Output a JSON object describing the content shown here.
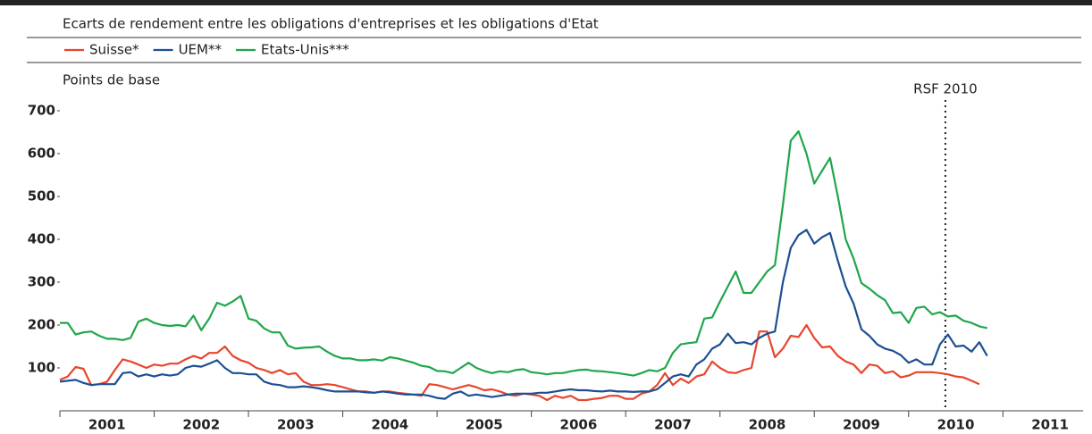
{
  "chart_data": {
    "type": "line",
    "title": "Ecarts de rendement entre les obligations d'entreprises et les obligations d'Etat",
    "y_label": "Points de base",
    "x": [
      2001,
      2001.083,
      2001.167,
      2001.25,
      2001.333,
      2001.417,
      2001.5,
      2001.583,
      2001.667,
      2001.75,
      2001.833,
      2001.917,
      2002,
      2002.083,
      2002.167,
      2002.25,
      2002.333,
      2002.417,
      2002.5,
      2002.583,
      2002.667,
      2002.75,
      2002.833,
      2002.917,
      2003,
      2003.083,
      2003.167,
      2003.25,
      2003.333,
      2003.417,
      2003.5,
      2003.583,
      2003.667,
      2003.75,
      2003.833,
      2003.917,
      2004,
      2004.083,
      2004.167,
      2004.25,
      2004.333,
      2004.417,
      2004.5,
      2004.583,
      2004.667,
      2004.75,
      2004.833,
      2004.917,
      2005,
      2005.083,
      2005.167,
      2005.25,
      2005.333,
      2005.417,
      2005.5,
      2005.583,
      2005.667,
      2005.75,
      2005.833,
      2005.917,
      2006,
      2006.083,
      2006.167,
      2006.25,
      2006.333,
      2006.417,
      2006.5,
      2006.583,
      2006.667,
      2006.75,
      2006.833,
      2006.917,
      2007,
      2007.083,
      2007.167,
      2007.25,
      2007.333,
      2007.417,
      2007.5,
      2007.583,
      2007.667,
      2007.75,
      2007.833,
      2007.917,
      2008,
      2008.083,
      2008.167,
      2008.25,
      2008.333,
      2008.417,
      2008.5,
      2008.583,
      2008.667,
      2008.75,
      2008.833,
      2008.917,
      2009,
      2009.083,
      2009.167,
      2009.25,
      2009.333,
      2009.417,
      2009.5,
      2009.583,
      2009.667,
      2009.75,
      2009.833,
      2009.917,
      2010,
      2010.083,
      2010.167,
      2010.25,
      2010.333,
      2010.417,
      2010.5,
      2010.583,
      2010.667,
      2010.75,
      2010.833
    ],
    "series": [
      {
        "name": "Suisse*",
        "color": "#e8452c",
        "values": [
          72,
          80,
          102,
          98,
          60,
          62,
          68,
          95,
          120,
          115,
          108,
          100,
          108,
          105,
          110,
          110,
          120,
          128,
          122,
          135,
          135,
          150,
          128,
          118,
          112,
          100,
          95,
          88,
          95,
          85,
          88,
          68,
          60,
          60,
          62,
          60,
          55,
          50,
          45,
          45,
          42,
          45,
          45,
          42,
          40,
          38,
          35,
          62,
          60,
          55,
          50,
          55,
          60,
          55,
          48,
          50,
          45,
          38,
          35,
          40,
          38,
          35,
          25,
          35,
          30,
          35,
          25,
          25,
          28,
          30,
          35,
          35,
          28,
          28,
          40,
          45,
          60,
          88,
          60,
          75,
          65,
          80,
          85,
          115,
          100,
          90,
          88,
          95,
          100,
          185,
          185,
          125,
          145,
          175,
          172,
          200,
          170,
          148,
          150,
          128,
          115,
          108,
          88,
          108,
          105,
          88,
          92,
          78,
          82,
          90,
          90,
          90,
          88,
          85,
          80,
          78,
          70,
          62,
          null
        ]
      },
      {
        "name": "UEM**",
        "color": "#1d4f91",
        "values": [
          68,
          70,
          72,
          65,
          60,
          62,
          62,
          62,
          88,
          90,
          80,
          85,
          80,
          85,
          82,
          85,
          100,
          105,
          103,
          110,
          118,
          100,
          88,
          88,
          85,
          85,
          68,
          62,
          60,
          55,
          55,
          57,
          55,
          52,
          48,
          45,
          45,
          45,
          45,
          43,
          42,
          45,
          43,
          40,
          38,
          38,
          38,
          35,
          30,
          28,
          40,
          45,
          35,
          38,
          35,
          32,
          35,
          38,
          40,
          40,
          40,
          42,
          42,
          45,
          48,
          50,
          48,
          48,
          46,
          45,
          47,
          45,
          45,
          44,
          45,
          45,
          50,
          65,
          80,
          85,
          80,
          108,
          120,
          145,
          155,
          180,
          158,
          160,
          155,
          170,
          180,
          185,
          300,
          380,
          410,
          422,
          390,
          405,
          415,
          350,
          290,
          250,
          190,
          175,
          155,
          145,
          140,
          130,
          112,
          120,
          108,
          108,
          155,
          178,
          150,
          152,
          138,
          160,
          128
        ]
      },
      {
        "name": "Etats-Unis***",
        "color": "#1fa64a",
        "values": [
          205,
          205,
          178,
          183,
          185,
          175,
          168,
          168,
          165,
          170,
          208,
          215,
          205,
          200,
          198,
          200,
          197,
          222,
          188,
          215,
          252,
          245,
          255,
          268,
          215,
          210,
          192,
          183,
          183,
          152,
          145,
          147,
          148,
          150,
          138,
          128,
          122,
          122,
          118,
          118,
          120,
          117,
          125,
          122,
          117,
          112,
          105,
          102,
          93,
          92,
          88,
          100,
          112,
          100,
          93,
          88,
          92,
          90,
          95,
          97,
          90,
          88,
          85,
          88,
          88,
          92,
          95,
          96,
          93,
          92,
          90,
          88,
          85,
          82,
          88,
          95,
          92,
          100,
          135,
          155,
          158,
          160,
          215,
          218,
          255,
          290,
          325,
          275,
          275,
          300,
          325,
          340,
          480,
          630,
          652,
          600,
          530,
          560,
          590,
          500,
          400,
          355,
          298,
          285,
          270,
          258,
          228,
          230,
          205,
          240,
          243,
          225,
          230,
          220,
          222,
          210,
          205,
          197,
          193
        ]
      }
    ],
    "xlim": [
      2001,
      2011.85
    ],
    "xticks": [
      2001,
      2002,
      2003,
      2004,
      2005,
      2006,
      2007,
      2008,
      2009,
      2010,
      2011
    ],
    "ylim": [
      0,
      700
    ],
    "yticks": [
      100,
      200,
      300,
      400,
      500,
      600,
      700
    ],
    "annotations": [
      {
        "text": "RSF 2010",
        "x": 2010.39
      }
    ]
  }
}
